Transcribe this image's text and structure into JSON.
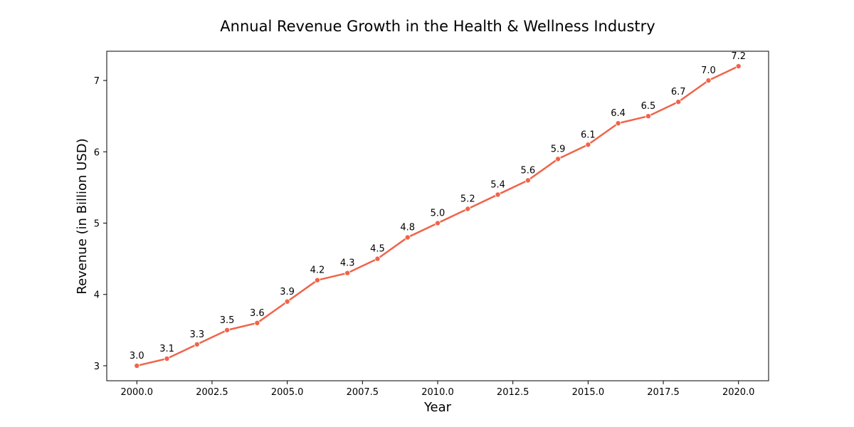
{
  "chart_data": {
    "type": "line",
    "title": "Annual Revenue Growth in the Health & Wellness Industry",
    "xlabel": "Year",
    "ylabel": "Revenue (in Billion USD)",
    "x": [
      2000,
      2001,
      2002,
      2003,
      2004,
      2005,
      2006,
      2007,
      2008,
      2009,
      2010,
      2011,
      2012,
      2013,
      2014,
      2015,
      2016,
      2017,
      2018,
      2019,
      2020
    ],
    "series": [
      {
        "name": "",
        "values": [
          3.0,
          3.1,
          3.3,
          3.5,
          3.6,
          3.9,
          4.2,
          4.3,
          4.5,
          4.8,
          5.0,
          5.2,
          5.4,
          5.6,
          5.9,
          6.1,
          6.4,
          6.5,
          6.7,
          7.0,
          7.2
        ],
        "data_labels": [
          "3.0",
          "3.1",
          "3.3",
          "3.5",
          "3.6",
          "3.9",
          "4.2",
          "4.3",
          "4.5",
          "4.8",
          "5.0",
          "5.2",
          "5.4",
          "5.6",
          "5.9",
          "6.1",
          "6.4",
          "6.5",
          "6.7",
          "7.0",
          "7.2"
        ],
        "color": "#f0644a"
      }
    ],
    "xlim": [
      1999.0,
      2021.0
    ],
    "ylim": [
      2.79,
      7.41
    ],
    "xticks": [
      2000.0,
      2002.5,
      2005.0,
      2007.5,
      2010.0,
      2012.5,
      2015.0,
      2017.5,
      2020.0
    ],
    "xtick_labels": [
      "2000.0",
      "2002.5",
      "2005.0",
      "2007.5",
      "2010.0",
      "2012.5",
      "2015.0",
      "2017.5",
      "2020.0"
    ],
    "yticks": [
      3,
      4,
      5,
      6,
      7
    ],
    "ytick_labels": [
      "3",
      "4",
      "5",
      "6",
      "7"
    ],
    "grid": false,
    "legend": "none",
    "markers": true
  }
}
